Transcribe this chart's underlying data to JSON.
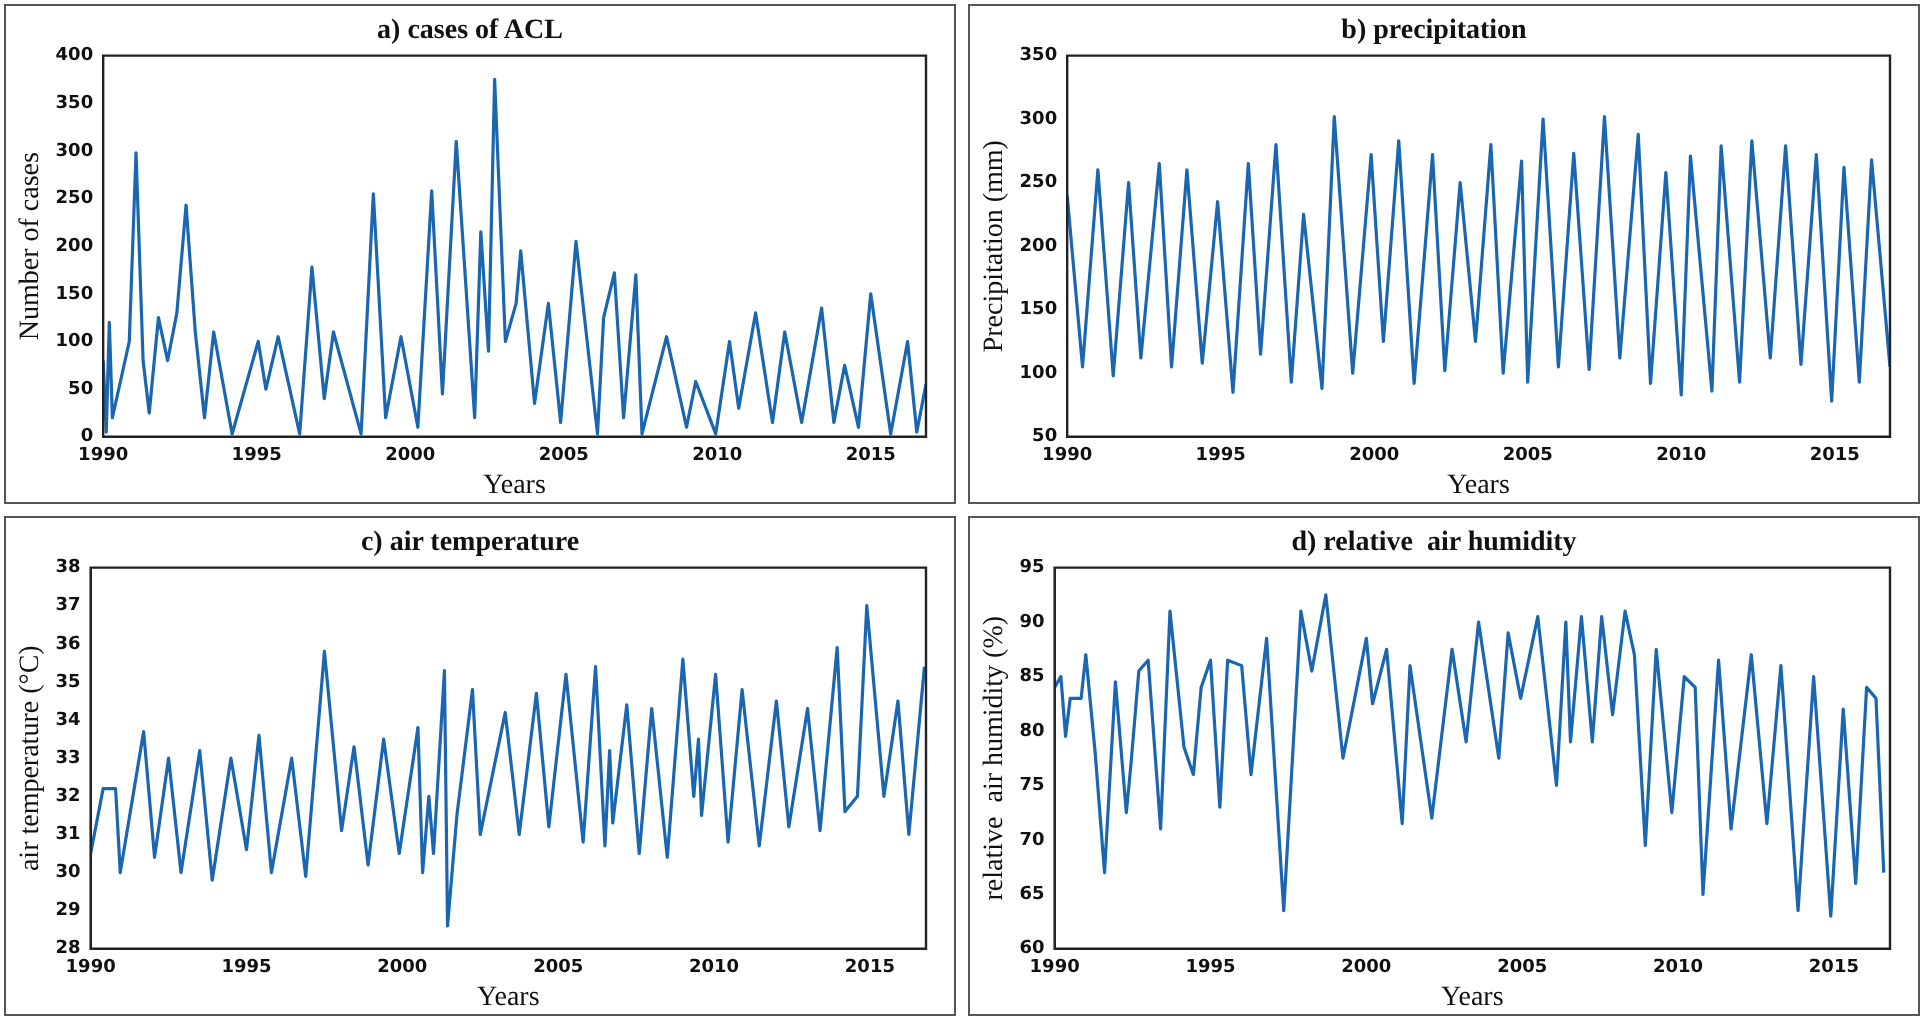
{
  "chart_data": [
    {
      "type": "line",
      "title": "a) cases of ACL",
      "xlabel": "Years",
      "ylabel": "Number of cases",
      "xlim": [
        1990,
        2016.8
      ],
      "xticks": [
        1990,
        1995,
        2000,
        2005,
        2010,
        2015
      ],
      "ylim": [
        0,
        400
      ],
      "yticks": [
        0,
        50,
        100,
        150,
        200,
        250,
        300,
        350,
        400
      ],
      "grid": false,
      "legend": false,
      "marker": "none",
      "line_style": "solid",
      "x": [
        1990,
        1990.1,
        1990.2,
        1990.3,
        1990.85,
        1991.07,
        1991.3,
        1991.5,
        1991.8,
        1992.1,
        1992.4,
        1992.7,
        1993.0,
        1993.3,
        1993.6,
        1994.2,
        1995.05,
        1995.3,
        1995.7,
        1996.4,
        1996.8,
        1997.2,
        1997.5,
        1998.4,
        1998.8,
        1999.2,
        1999.7,
        2000.25,
        2000.7,
        2001.05,
        2001.5,
        2002.1,
        2002.3,
        2002.55,
        2002.75,
        2003.1,
        2003.45,
        2003.6,
        2004.05,
        2004.5,
        2004.9,
        2005.4,
        2006.1,
        2006.3,
        2006.65,
        2006.95,
        2007.35,
        2007.55,
        2007.8,
        2008.35,
        2009.0,
        2009.3,
        2009.95,
        2010.4,
        2010.7,
        2011.25,
        2011.8,
        2012.2,
        2012.75,
        2013.4,
        2013.8,
        2014.15,
        2014.6,
        2015.0,
        2015.65,
        2016.2,
        2016.5,
        2016.8
      ],
      "series": [
        {
          "color": "#1a66b0",
          "values": [
            80,
            5,
            120,
            20,
            100,
            298,
            80,
            25,
            125,
            80,
            130,
            243,
            110,
            20,
            110,
            3,
            100,
            50,
            105,
            3,
            178,
            40,
            110,
            3,
            255,
            20,
            105,
            10,
            258,
            45,
            310,
            20,
            215,
            90,
            375,
            100,
            140,
            195,
            35,
            140,
            15,
            205,
            3,
            125,
            172,
            20,
            170,
            3,
            35,
            105,
            10,
            58,
            3,
            100,
            30,
            130,
            15,
            110,
            15,
            135,
            15,
            75,
            10,
            150,
            3,
            100,
            5,
            55
          ]
        }
      ]
    },
    {
      "type": "line",
      "title": "b) precipitation",
      "xlabel": "Years",
      "ylabel": "Precipitation (mm)",
      "xlim": [
        1990,
        2016.8
      ],
      "xticks": [
        1990,
        1995,
        2000,
        2005,
        2010,
        2015
      ],
      "ylim": [
        50,
        350
      ],
      "yticks": [
        50,
        100,
        150,
        200,
        250,
        300,
        350
      ],
      "grid": false,
      "legend": false,
      "marker": "none",
      "line_style": "solid",
      "x": [
        1990,
        1990.5,
        1991.0,
        1991.5,
        1992.0,
        1992.4,
        1993.0,
        1993.4,
        1993.9,
        1994.4,
        1994.9,
        1995.4,
        1995.9,
        1996.3,
        1996.8,
        1997.3,
        1997.7,
        1998.3,
        1998.7,
        1999.3,
        1999.9,
        2000.3,
        2000.8,
        2001.3,
        2001.9,
        2002.3,
        2002.8,
        2003.3,
        2003.8,
        2004.2,
        2004.8,
        2005.0,
        2005.5,
        2006.0,
        2006.5,
        2007.0,
        2007.5,
        2008.0,
        2008.6,
        2009.0,
        2009.5,
        2010.0,
        2010.3,
        2011.0,
        2011.3,
        2011.9,
        2012.3,
        2012.9,
        2013.4,
        2013.9,
        2014.4,
        2014.9,
        2015.3,
        2015.8,
        2016.2,
        2016.8
      ],
      "series": [
        {
          "color": "#1a66b0",
          "values": [
            240,
            105,
            260,
            98,
            250,
            112,
            265,
            105,
            260,
            108,
            235,
            85,
            265,
            115,
            280,
            93,
            225,
            88,
            302,
            100,
            272,
            125,
            283,
            92,
            272,
            102,
            250,
            125,
            280,
            100,
            267,
            93,
            300,
            105,
            273,
            103,
            302,
            112,
            288,
            92,
            258,
            83,
            271,
            86,
            279,
            93,
            283,
            112,
            279,
            107,
            272,
            78,
            262,
            93,
            268,
            105
          ]
        }
      ]
    },
    {
      "type": "line",
      "title": "c) air temperature",
      "xlabel": "Years",
      "ylabel": "air temperature (°C)",
      "xlim": [
        1990,
        2016.8
      ],
      "xticks": [
        1990,
        1995,
        2000,
        2005,
        2010,
        2015
      ],
      "ylim": [
        28,
        38
      ],
      "yticks": [
        28,
        29,
        30,
        31,
        32,
        33,
        34,
        35,
        36,
        37,
        38
      ],
      "grid": false,
      "legend": false,
      "marker": "none",
      "line_style": "solid",
      "x": [
        1990,
        1990.4,
        1990.8,
        1990.95,
        1991.7,
        1992.05,
        1992.5,
        1992.9,
        1993.5,
        1993.9,
        1994.5,
        1995.0,
        1995.4,
        1995.8,
        1996.45,
        1996.9,
        1997.5,
        1998.05,
        1998.45,
        1998.9,
        1999.4,
        1999.9,
        2000.5,
        2000.65,
        2000.85,
        2001.0,
        2001.35,
        2001.45,
        2001.75,
        2002.25,
        2002.5,
        2003.3,
        2003.75,
        2004.3,
        2004.7,
        2005.25,
        2005.8,
        2006.2,
        2006.5,
        2006.65,
        2006.75,
        2007.2,
        2007.6,
        2008.0,
        2008.5,
        2009.0,
        2009.35,
        2009.5,
        2009.6,
        2010.05,
        2010.45,
        2010.9,
        2011.45,
        2012.0,
        2012.4,
        2013.0,
        2013.4,
        2013.95,
        2014.2,
        2014.6,
        2014.9,
        2015.45,
        2015.9,
        2016.25,
        2016.75
      ],
      "series": [
        {
          "color": "#1a66b0",
          "values": [
            30.5,
            32.2,
            32.2,
            30.0,
            33.7,
            30.4,
            33.0,
            30.0,
            33.2,
            29.8,
            33.0,
            30.6,
            33.6,
            30.0,
            33.0,
            29.9,
            35.8,
            31.1,
            33.3,
            30.2,
            33.5,
            30.5,
            33.8,
            30.0,
            32.0,
            30.5,
            35.3,
            28.6,
            31.5,
            34.8,
            31.0,
            34.2,
            31.0,
            34.7,
            31.2,
            35.2,
            30.8,
            35.4,
            30.7,
            33.2,
            31.3,
            34.4,
            30.5,
            34.3,
            30.4,
            35.6,
            32.0,
            33.5,
            31.5,
            35.2,
            30.8,
            34.8,
            30.7,
            34.5,
            31.2,
            34.3,
            31.1,
            35.9,
            31.6,
            32.0,
            37.0,
            32.0,
            34.5,
            31.0,
            35.4
          ]
        }
      ]
    },
    {
      "type": "line",
      "title": "d) relative  air humidity",
      "xlabel": "Years",
      "ylabel": "relative  air humidity (%)",
      "xlim": [
        1990,
        2016.8
      ],
      "xticks": [
        1990,
        1995,
        2000,
        2005,
        2010,
        2015
      ],
      "ylim": [
        60,
        95
      ],
      "yticks": [
        60,
        65,
        70,
        75,
        80,
        85,
        90,
        95
      ],
      "grid": false,
      "legend": false,
      "marker": "none",
      "line_style": "solid",
      "x": [
        1990,
        1990.2,
        1990.35,
        1990.5,
        1990.85,
        1991.0,
        1991.3,
        1991.6,
        1991.95,
        1992.3,
        1992.45,
        1992.7,
        1993.0,
        1993.4,
        1993.7,
        1994.15,
        1994.45,
        1994.7,
        1995.0,
        1995.3,
        1995.55,
        1996.0,
        1996.3,
        1996.8,
        1997.35,
        1997.9,
        1998.25,
        1998.7,
        1999.25,
        2000.0,
        2000.2,
        2000.65,
        2001.15,
        2001.4,
        2002.1,
        2002.75,
        2003.2,
        2003.6,
        2004.25,
        2004.55,
        2004.95,
        2005.5,
        2006.1,
        2006.4,
        2006.55,
        2006.9,
        2007.25,
        2007.55,
        2007.9,
        2008.3,
        2008.6,
        2008.95,
        2009.3,
        2009.8,
        2010.2,
        2010.55,
        2010.8,
        2011.3,
        2011.7,
        2012.35,
        2012.85,
        2013.3,
        2013.85,
        2014.35,
        2014.9,
        2015.3,
        2015.7,
        2016.05,
        2016.35,
        2016.6
      ],
      "series": [
        {
          "color": "#1a66b0",
          "values": [
            84,
            85,
            79.5,
            83,
            83,
            87,
            78,
            67,
            84.5,
            72.5,
            77,
            85.5,
            86.5,
            71,
            91,
            78.5,
            76,
            84,
            86.5,
            73,
            86.5,
            86,
            76,
            88.5,
            63.5,
            91,
            85.5,
            92.5,
            77.5,
            88.5,
            82.5,
            87.5,
            71.5,
            86,
            72,
            87.5,
            79,
            90,
            77.5,
            89,
            83,
            90.5,
            75,
            90,
            79,
            90.5,
            79,
            90.5,
            81.5,
            91,
            87,
            69.5,
            87.5,
            72.5,
            85,
            84,
            65,
            86.5,
            71,
            87,
            71.5,
            86,
            63.5,
            85,
            63,
            82,
            66,
            84,
            83,
            67
          ]
        }
      ]
    }
  ]
}
